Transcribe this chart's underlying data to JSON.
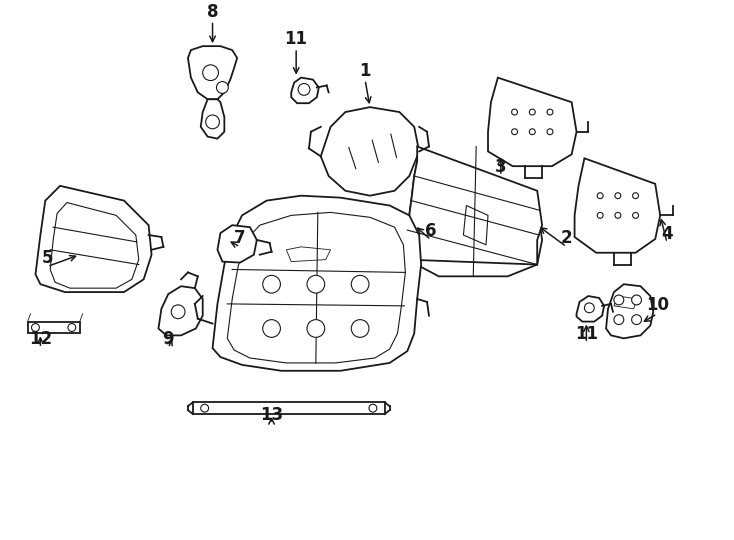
{
  "background": "#ffffff",
  "line_color": "#1a1a1a",
  "fig_width": 7.34,
  "fig_height": 5.4,
  "dpi": 100
}
